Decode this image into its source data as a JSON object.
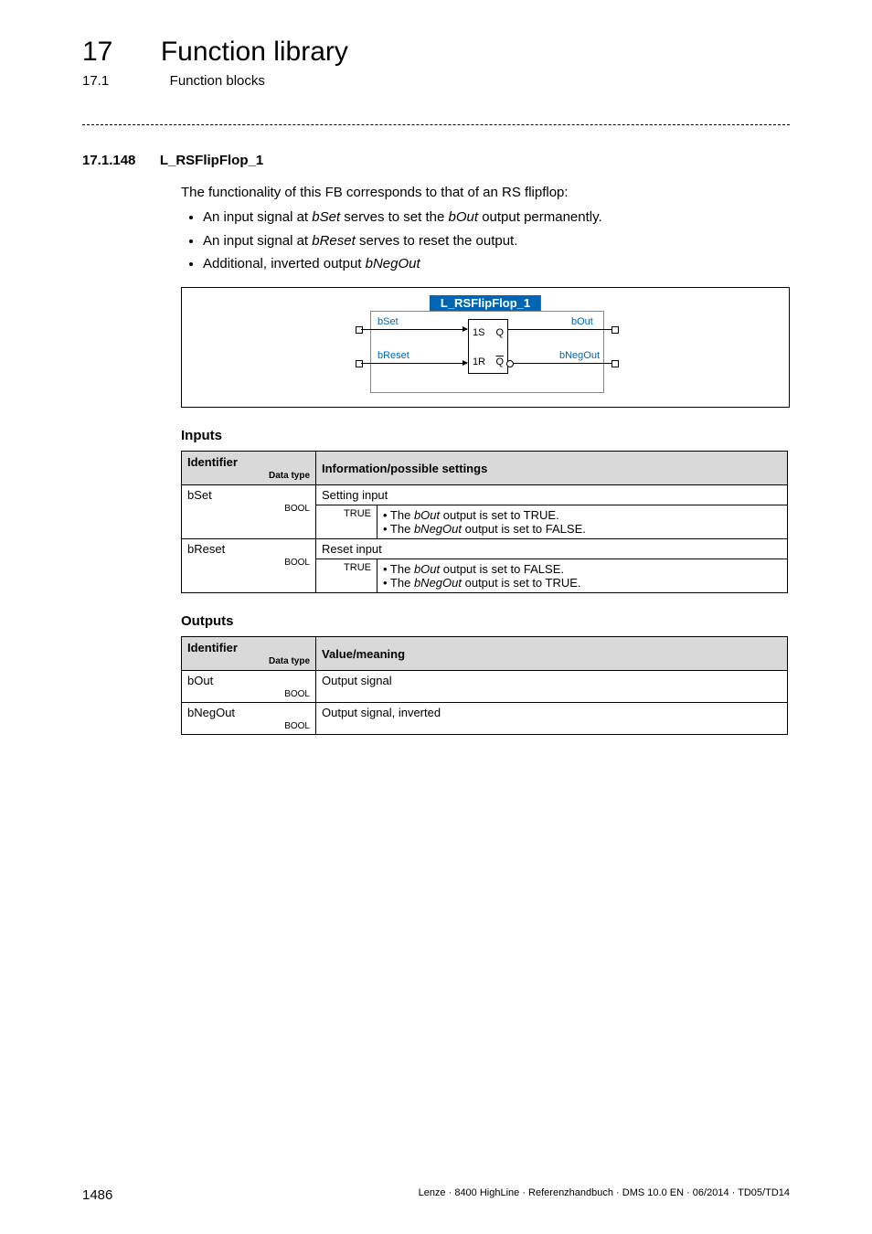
{
  "header": {
    "chapter_num": "17",
    "chapter_title": "Function library",
    "sub_num": "17.1",
    "sub_title": "Function blocks"
  },
  "section": {
    "num": "17.1.148",
    "title": "L_RSFlipFlop_1",
    "intro": "The functionality of this FB corresponds to that of an RS flipflop:",
    "bullets": [
      {
        "pre": "An input signal at ",
        "em": "bSet",
        "post": " serves to set the ",
        "em2": "bOut",
        "post2": " output permanently."
      },
      {
        "pre": "An input signal at ",
        "em": "bReset",
        "post": " serves to reset the output."
      },
      {
        "pre": "Additional, inverted output ",
        "em": "bNegOut",
        "post": ""
      }
    ]
  },
  "diagram": {
    "title": "L_RSFlipFlop_1",
    "ports": {
      "bSet": "bSet",
      "bReset": "bReset",
      "bOut": "bOut",
      "bNegOut": "bNegOut"
    },
    "inner": {
      "s": "1S",
      "q": "Q",
      "r": "1R",
      "qb": "Q"
    }
  },
  "inputs": {
    "heading": "Inputs",
    "head_id": "Identifier",
    "head_dtype": "Data type",
    "head_info": "Information/possible settings",
    "rows": [
      {
        "id": "bSet",
        "dtype": "BOOL",
        "top": "Setting input",
        "sub_key": "TRUE",
        "sub_lines": [
          "• The bOut output is set to TRUE.",
          "• The bNegOut output is set to FALSE."
        ]
      },
      {
        "id": "bReset",
        "dtype": "BOOL",
        "top": "Reset input",
        "sub_key": "TRUE",
        "sub_lines": [
          "• The bOut output is set to FALSE.",
          "• The bNegOut output is set to TRUE."
        ]
      }
    ]
  },
  "outputs": {
    "heading": "Outputs",
    "head_id": "Identifier",
    "head_dtype": "Data type",
    "head_val": "Value/meaning",
    "rows": [
      {
        "id": "bOut",
        "dtype": "BOOL",
        "val": "Output signal"
      },
      {
        "id": "bNegOut",
        "dtype": "BOOL",
        "val": "Output signal, inverted"
      }
    ]
  },
  "footer": {
    "page": "1486",
    "meta": "Lenze · 8400 HighLine · Referenzhandbuch · DMS 10.0 EN · 06/2014 · TD05/TD14"
  }
}
